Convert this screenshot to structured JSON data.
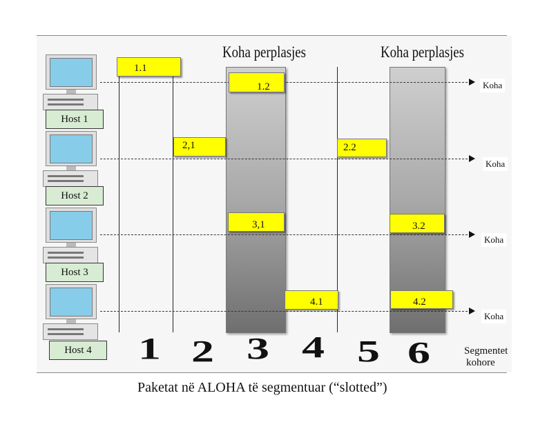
{
  "hosts": [
    "Host 1",
    "Host 2",
    "Host 3",
    "Host 4"
  ],
  "collision_label": "Koha perplasjes",
  "time_label": "Koha",
  "packets": {
    "p1_1": "1.1",
    "p1_2": "1.2",
    "p2_1": "2,1",
    "p2_2": "2.2",
    "p3_1": "3,1",
    "p3_2": "3.2",
    "p4_1": "4.1",
    "p4_2": "4.2"
  },
  "slots": [
    "1",
    "2",
    "3",
    "4",
    "5",
    "6"
  ],
  "slot_axis_label_line1": "Segmentet",
  "slot_axis_label_line2": "kohore",
  "caption": "Paketat në ALOHA të segmentuar (“slotted”)",
  "colors": {
    "packet": "#ffff00",
    "host_box": "#d7ecd3",
    "screen": "#87cdea"
  }
}
